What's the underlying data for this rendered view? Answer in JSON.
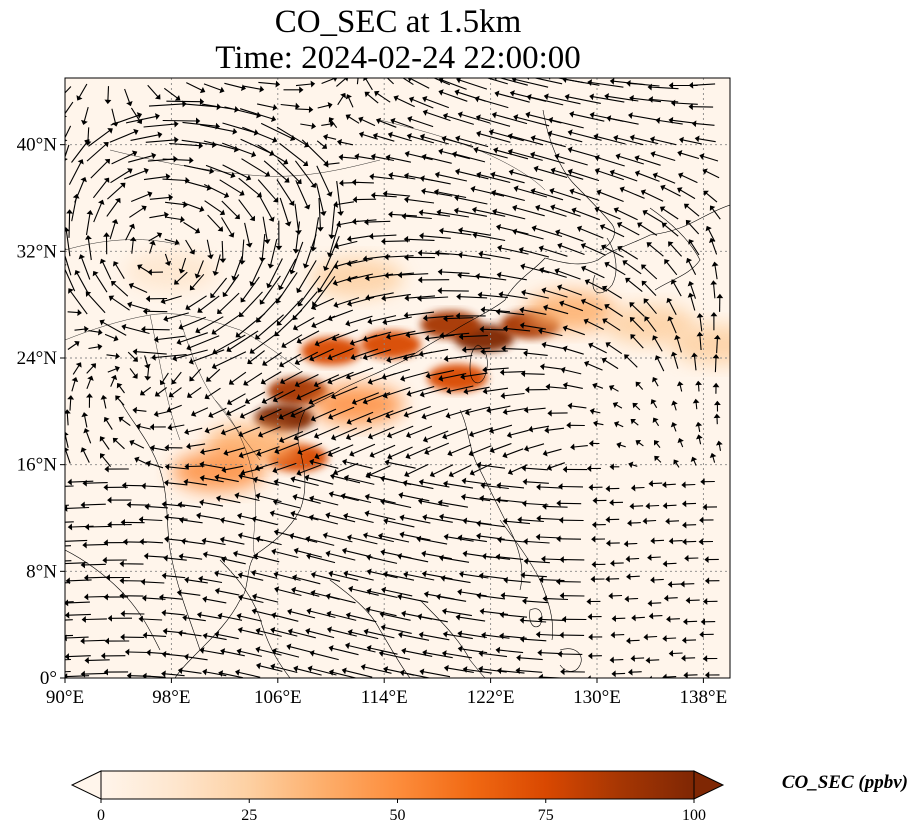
{
  "title_line1": "CO_SEC at 1.5km",
  "title_line2": "Time: 2024-02-24 22:00:00",
  "map": {
    "lon_range": [
      90,
      140
    ],
    "lat_range": [
      0,
      45
    ],
    "x_ticks": [
      {
        "value": 90,
        "label": "90°E"
      },
      {
        "value": 98,
        "label": "98°E"
      },
      {
        "value": 106,
        "label": "106°E"
      },
      {
        "value": 114,
        "label": "114°E"
      },
      {
        "value": 122,
        "label": "122°E"
      },
      {
        "value": 130,
        "label": "130°E"
      },
      {
        "value": 138,
        "label": "138°E"
      }
    ],
    "y_ticks": [
      {
        "value": 0,
        "label": "0°"
      },
      {
        "value": 8,
        "label": "8°N"
      },
      {
        "value": 16,
        "label": "16°N"
      },
      {
        "value": 24,
        "label": "24°N"
      },
      {
        "value": 32,
        "label": "32°N"
      },
      {
        "value": 40,
        "label": "40°N"
      }
    ],
    "gridlines": true,
    "background_color": "#fff5eb",
    "coastline_color": "#000000",
    "wind_vectors": "quiver arrows overlaid on CO field"
  },
  "colorbar": {
    "label": "CO_SEC (ppbv)",
    "min": 0,
    "max": 100,
    "extend": "both",
    "colormap": "OrRd",
    "colors": [
      "#fff5eb",
      "#fee6ce",
      "#fdd0a2",
      "#fdae6b",
      "#fd8d3c",
      "#f16913",
      "#d94801",
      "#a63603",
      "#7f2704"
    ],
    "ticks": [
      {
        "value": 0,
        "label": "0"
      },
      {
        "value": 25,
        "label": "25"
      },
      {
        "value": 50,
        "label": "50"
      },
      {
        "value": 75,
        "label": "75"
      },
      {
        "value": 100,
        "label": "100"
      }
    ]
  },
  "plumes": [
    {
      "lon": 121.5,
      "lat": 25.5,
      "value": 100
    },
    {
      "lon": 119.0,
      "lat": 26.5,
      "value": 90
    },
    {
      "lon": 125.0,
      "lat": 26.5,
      "value": 85
    },
    {
      "lon": 114.5,
      "lat": 25.0,
      "value": 80
    },
    {
      "lon": 110.0,
      "lat": 24.5,
      "value": 80
    },
    {
      "lon": 107.5,
      "lat": 21.5,
      "value": 90
    },
    {
      "lon": 106.5,
      "lat": 19.5,
      "value": 95
    },
    {
      "lon": 107.5,
      "lat": 16.5,
      "value": 80
    },
    {
      "lon": 112.0,
      "lat": 20.5,
      "value": 45
    },
    {
      "lon": 119.5,
      "lat": 22.5,
      "value": 75
    },
    {
      "lon": 128.0,
      "lat": 27.5,
      "value": 40
    },
    {
      "lon": 134.0,
      "lat": 26.5,
      "value": 25
    },
    {
      "lon": 139.0,
      "lat": 25.0,
      "value": 30
    },
    {
      "lon": 104.0,
      "lat": 17.5,
      "value": 35
    },
    {
      "lon": 101.5,
      "lat": 15.5,
      "value": 45
    },
    {
      "lon": 112.0,
      "lat": 30.0,
      "value": 20
    },
    {
      "lon": 98.0,
      "lat": 30.5,
      "value": 15
    }
  ]
}
